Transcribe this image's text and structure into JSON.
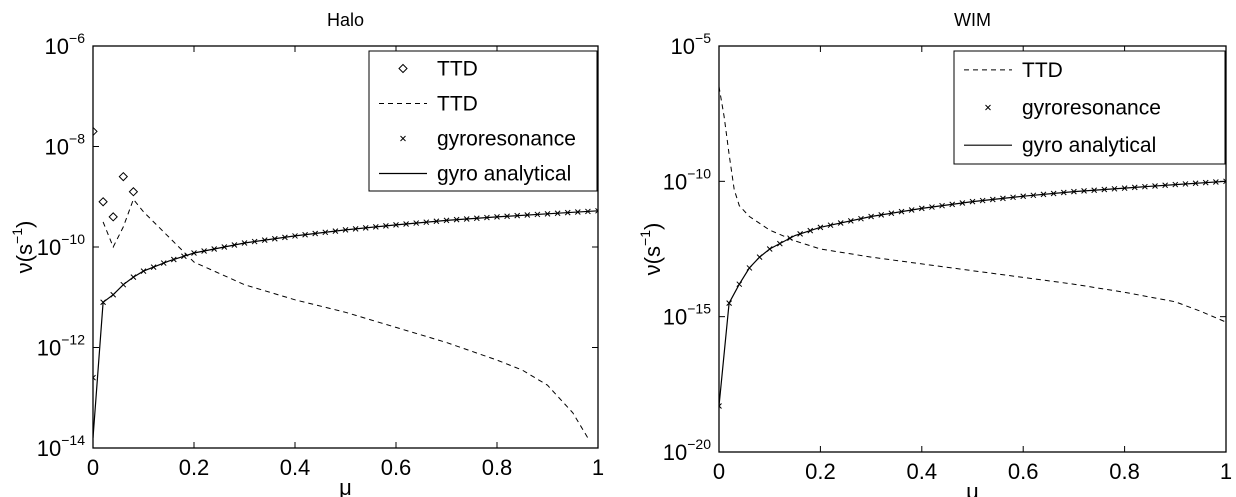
{
  "chart_data": [
    {
      "type": "line",
      "title": "Halo",
      "xlabel": "μ",
      "ylabel": "ν(s⁻¹)",
      "ylabel_base": "ν(s",
      "ylabel_exp": "−1",
      "ylabel_close": ")",
      "xlim": [
        0,
        1
      ],
      "ylim_log10": [
        -14,
        -6
      ],
      "yscale": "log",
      "x_ticks": [
        "0",
        "0.2",
        "0.4",
        "0.6",
        "0.8",
        "1"
      ],
      "y_tick_exponents": [
        "-14",
        "-12",
        "-10",
        "-8",
        "-6"
      ],
      "y_tick_base": "10",
      "grid": false,
      "legend_position": "top-right",
      "legend": [
        {
          "label": "TTD",
          "style": "diamond"
        },
        {
          "label": "TTD",
          "style": "dashed"
        },
        {
          "label": "gyroresonance",
          "style": "cross"
        },
        {
          "label": "gyro analytical",
          "style": "solid"
        }
      ],
      "series": [
        {
          "name": "TTD",
          "style": "diamond",
          "log10_values": true,
          "x": [
            0,
            0.02,
            0.04,
            0.06,
            0.08
          ],
          "y": [
            -7.7,
            -9.1,
            -9.4,
            -8.6,
            -8.9
          ]
        },
        {
          "name": "TTD",
          "style": "dashed",
          "log10_values": true,
          "x": [
            0.02,
            0.04,
            0.06,
            0.08,
            0.1,
            0.15,
            0.2,
            0.3,
            0.4,
            0.5,
            0.6,
            0.7,
            0.8,
            0.85,
            0.9,
            0.95,
            0.98
          ],
          "y": [
            -9.5,
            -10.0,
            -9.6,
            -9.05,
            -9.3,
            -9.8,
            -10.3,
            -10.75,
            -11.05,
            -11.3,
            -11.6,
            -11.9,
            -12.25,
            -12.45,
            -12.75,
            -13.3,
            -13.8
          ]
        },
        {
          "name": "gyroresonance",
          "style": "cross",
          "log10_values": true,
          "x": [
            0,
            0.02,
            0.04,
            0.06,
            0.08,
            0.1,
            0.15,
            0.2,
            0.3,
            0.4,
            0.5,
            0.6,
            0.7,
            0.8,
            0.9,
            1.0
          ],
          "y": [
            -12.6,
            -11.1,
            -10.95,
            -10.75,
            -10.6,
            -10.48,
            -10.28,
            -10.12,
            -9.92,
            -9.78,
            -9.66,
            -9.56,
            -9.47,
            -9.4,
            -9.34,
            -9.28
          ]
        },
        {
          "name": "gyro analytical",
          "style": "solid",
          "log10_values": true,
          "x": [
            0,
            0.02,
            0.04,
            0.06,
            0.08,
            0.1,
            0.15,
            0.2,
            0.3,
            0.4,
            0.5,
            0.6,
            0.7,
            0.8,
            0.9,
            1.0
          ],
          "y": [
            -13.8,
            -11.1,
            -10.95,
            -10.75,
            -10.6,
            -10.48,
            -10.28,
            -10.12,
            -9.92,
            -9.78,
            -9.66,
            -9.56,
            -9.47,
            -9.4,
            -9.34,
            -9.28
          ]
        }
      ]
    },
    {
      "type": "line",
      "title": "WIM",
      "xlabel": "μ",
      "ylabel": "ν(s⁻¹)",
      "ylabel_base": "ν(s",
      "ylabel_exp": "−1",
      "ylabel_close": ")",
      "xlim": [
        0,
        1
      ],
      "ylim_log10": [
        -20,
        -5
      ],
      "yscale": "log",
      "x_ticks": [
        "0",
        "0.2",
        "0.4",
        "0.6",
        "0.8",
        "1"
      ],
      "y_tick_exponents": [
        "-20",
        "-15",
        "-10",
        "-5"
      ],
      "y_tick_base": "10",
      "grid": false,
      "legend_position": "top-right",
      "legend": [
        {
          "label": "TTD",
          "style": "dashed"
        },
        {
          "label": "gyroresonance",
          "style": "cross"
        },
        {
          "label": "gyro analytical",
          "style": "solid"
        }
      ],
      "series": [
        {
          "name": "TTD",
          "style": "dashed",
          "log10_values": true,
          "x": [
            0,
            0.01,
            0.02,
            0.03,
            0.04,
            0.06,
            0.1,
            0.15,
            0.2,
            0.3,
            0.4,
            0.5,
            0.6,
            0.7,
            0.8,
            0.9,
            0.95,
            1.0
          ],
          "y": [
            -6.5,
            -7.6,
            -9.0,
            -10.3,
            -10.9,
            -11.3,
            -11.8,
            -12.2,
            -12.5,
            -12.8,
            -13.05,
            -13.3,
            -13.55,
            -13.8,
            -14.1,
            -14.45,
            -14.8,
            -15.2
          ]
        },
        {
          "name": "gyroresonance",
          "style": "cross",
          "log10_values": true,
          "x": [
            0,
            0.02,
            0.04,
            0.06,
            0.08,
            0.1,
            0.15,
            0.2,
            0.3,
            0.4,
            0.5,
            0.6,
            0.7,
            0.8,
            0.9,
            1.0
          ],
          "y": [
            -18.3,
            -14.5,
            -13.8,
            -13.2,
            -12.8,
            -12.5,
            -12.0,
            -11.7,
            -11.3,
            -11.0,
            -10.75,
            -10.55,
            -10.38,
            -10.25,
            -10.12,
            -10.0
          ]
        },
        {
          "name": "gyro analytical",
          "style": "solid",
          "log10_values": true,
          "x": [
            0,
            0.02,
            0.04,
            0.06,
            0.08,
            0.1,
            0.15,
            0.2,
            0.3,
            0.4,
            0.5,
            0.6,
            0.7,
            0.8,
            0.9,
            1.0
          ],
          "y": [
            -18.3,
            -14.5,
            -13.8,
            -13.2,
            -12.8,
            -12.5,
            -12.0,
            -11.7,
            -11.3,
            -11.0,
            -10.75,
            -10.55,
            -10.38,
            -10.25,
            -10.12,
            -10.0
          ]
        }
      ]
    }
  ]
}
